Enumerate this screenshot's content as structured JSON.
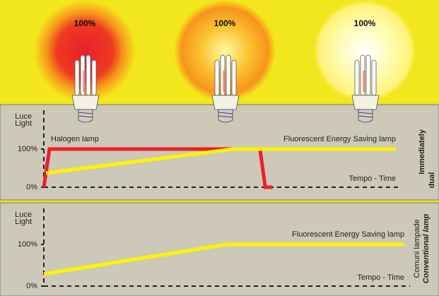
{
  "header": {
    "bulb_labels": [
      "100%",
      "100%",
      "100%"
    ]
  },
  "chart_data": [
    {
      "type": "line",
      "ylabel": [
        "Luce",
        "Light"
      ],
      "xlabel": "Tempo - Time",
      "side_title": "Immediately",
      "side_subtitle": "dual",
      "xlim": [
        0,
        100
      ],
      "ylim": [
        0,
        100
      ],
      "yticks": [
        {
          "value": 0,
          "label": "0%"
        },
        {
          "value": 100,
          "label": "100%"
        }
      ],
      "series": [
        {
          "name": "Halogen lamp",
          "color": "#e8202a",
          "x": [
            0,
            1.6,
            61.4,
            62.9,
            64.9
          ],
          "values": [
            0,
            100,
            100,
            0,
            0
          ]
        },
        {
          "name": "Fluorescent Energy Saving lamp",
          "color": "#fff200",
          "x": [
            0.6,
            53.8,
            100
          ],
          "values": [
            37,
            100,
            100
          ]
        }
      ]
    },
    {
      "type": "line",
      "ylabel": [
        "Luce",
        "Light"
      ],
      "xlabel": "Tempo - Time",
      "side_title": "Comuni lampade",
      "side_subtitle": "Conventional lamp",
      "xlim": [
        0,
        100
      ],
      "ylim": [
        0,
        100
      ],
      "yticks": [
        {
          "value": 0,
          "label": "0%"
        },
        {
          "value": 100,
          "label": "100%"
        }
      ],
      "series": [
        {
          "name": "Fluorescent Energy Saving lamp",
          "color": "#fff200",
          "x": [
            0,
            50.6,
            100
          ],
          "values": [
            29,
            100,
            100
          ]
        }
      ]
    }
  ]
}
